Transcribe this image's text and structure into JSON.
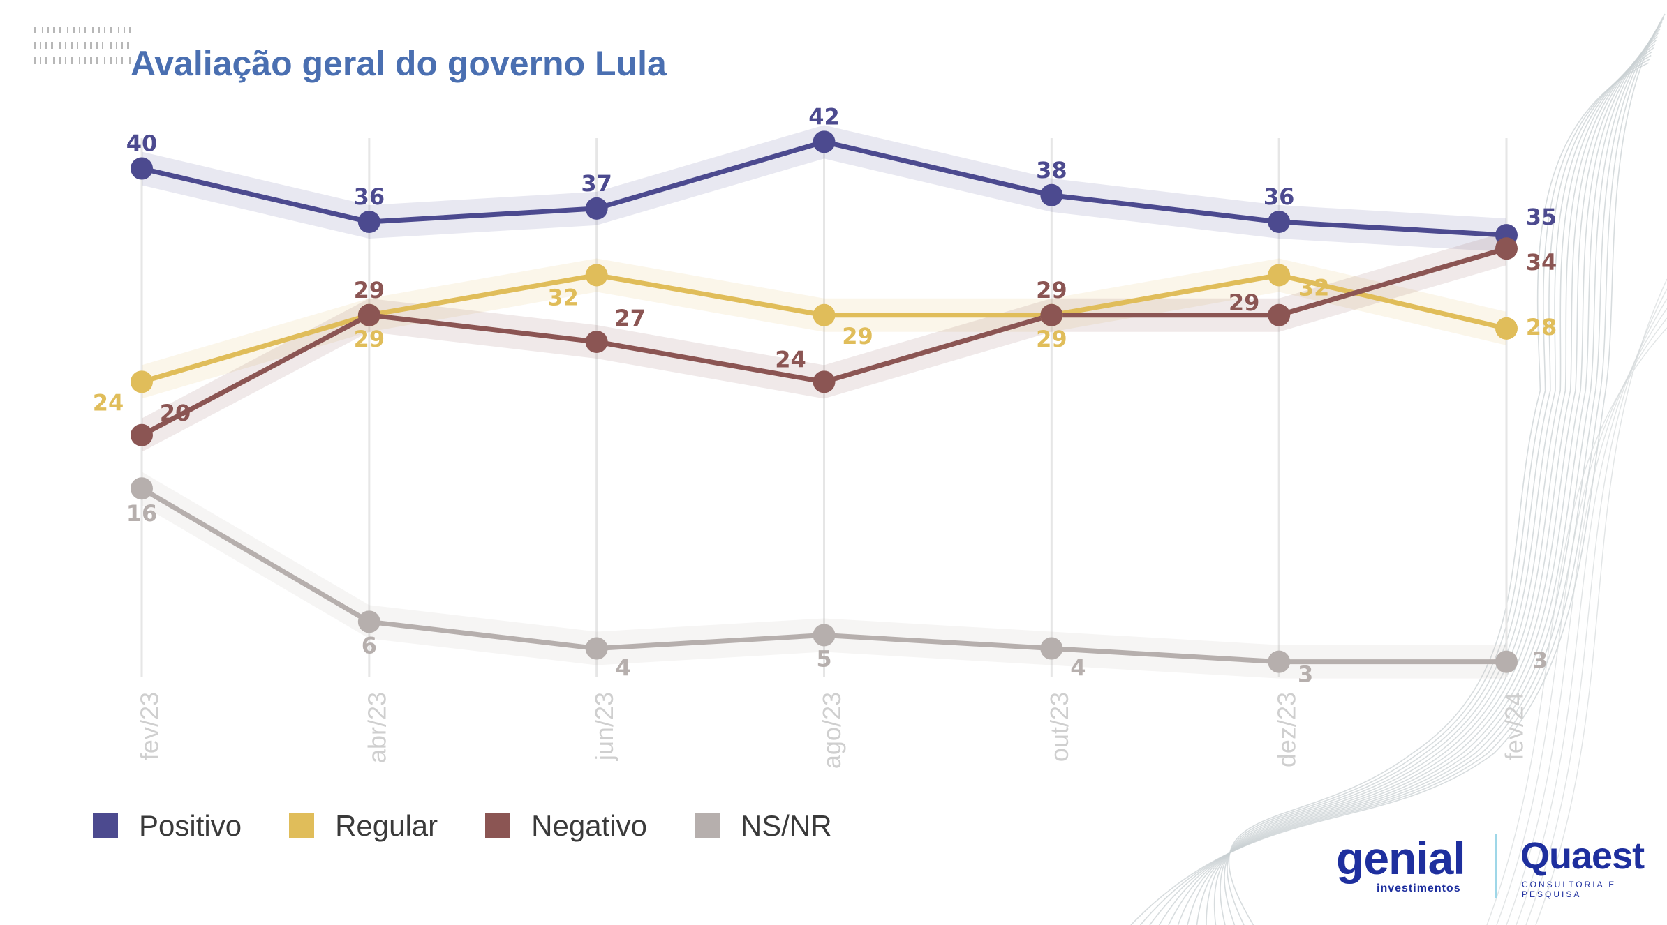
{
  "title": "Avaliação geral do governo Lula",
  "colors": {
    "title": "#4a6fb1",
    "positivo": "#4c4a8f",
    "regular": "#e0bd5a",
    "negativo": "#8b5553",
    "nsnr": "#b6afad",
    "grid": "#e6e6e6",
    "tick": "#cfcfcf"
  },
  "chart_data": {
    "type": "line",
    "title": "Avaliação geral do governo Lula",
    "categories": [
      "fev/23",
      "abr/23",
      "jun/23",
      "ago/23",
      "out/23",
      "dez/23",
      "fev/24"
    ],
    "series": [
      {
        "name": "Positivo",
        "color": "#4c4a8f",
        "values": [
          40,
          36,
          37,
          42,
          38,
          36,
          35
        ]
      },
      {
        "name": "Regular",
        "color": "#e0bd5a",
        "values": [
          24,
          29,
          32,
          29,
          29,
          32,
          28
        ]
      },
      {
        "name": "Negativo",
        "color": "#8b5553",
        "values": [
          20,
          29,
          27,
          24,
          29,
          29,
          34
        ]
      },
      {
        "name": "NS/NR",
        "color": "#b6afad",
        "values": [
          16,
          6,
          4,
          5,
          4,
          3,
          3
        ]
      }
    ],
    "ylim": [
      0,
      45
    ],
    "grid": "vertical",
    "legend": "bottom-left",
    "data_labels": true
  },
  "legend": [
    "Positivo",
    "Regular",
    "Negativo",
    "NS/NR"
  ],
  "logos": {
    "genial": "genial",
    "genial_sub": "investimentos",
    "quaest": "Quaest",
    "quaest_sub": "CONSULTORIA E PESQUISA"
  }
}
